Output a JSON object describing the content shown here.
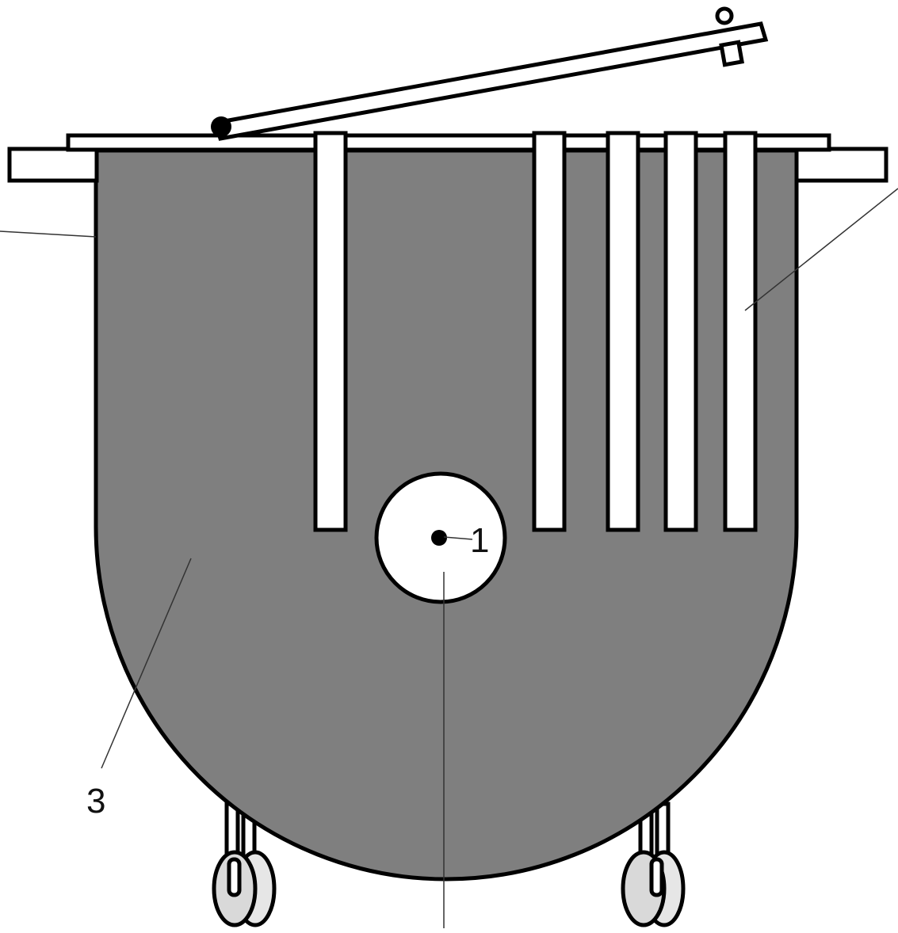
{
  "labels": {
    "center": "1",
    "body": "3"
  },
  "colors": {
    "body_fill": "#7f7f7f",
    "outline": "#000000",
    "white_parts": "#ffffff",
    "wheel_fill": "#d9d9d9",
    "leader_line": "#333333"
  }
}
